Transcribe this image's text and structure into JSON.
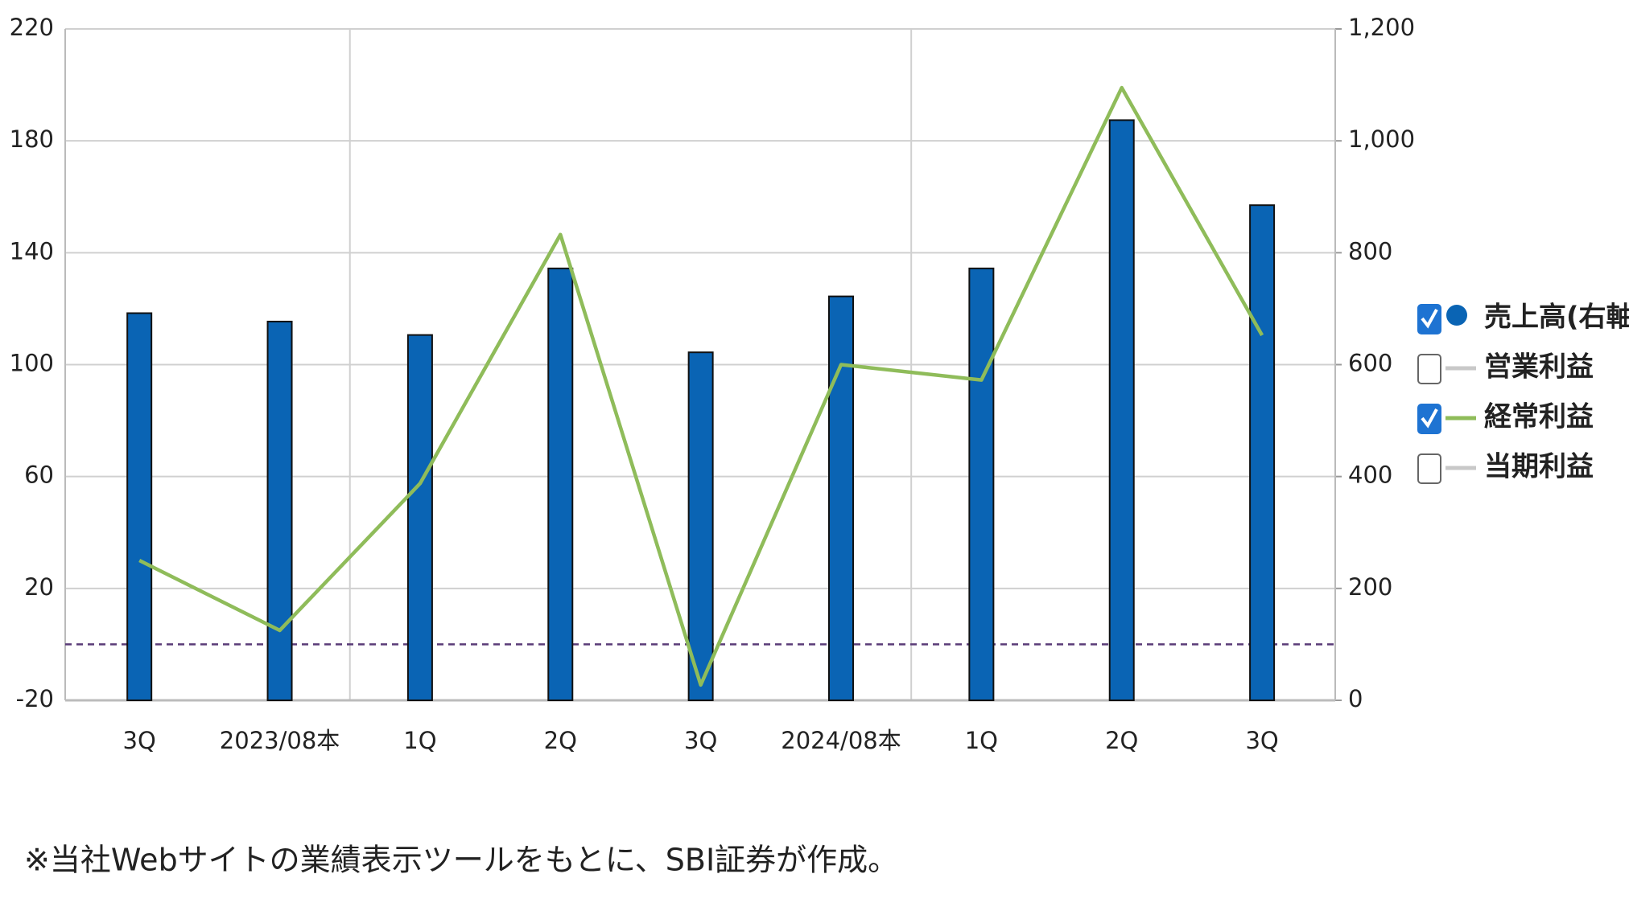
{
  "chart_data": {
    "type": "bar-line",
    "categories": [
      "3Q",
      "2023/08本",
      "1Q",
      "2Q",
      "3Q",
      "2024/08本",
      "1Q",
      "2Q",
      "3Q"
    ],
    "series": [
      {
        "name": "売上高(右軸)",
        "type": "bar",
        "axis": "y2",
        "color": "#0a64b4",
        "checked": true,
        "values": [
          692,
          677,
          653,
          772,
          622,
          722,
          772,
          1037,
          885
        ]
      },
      {
        "name": "営業利益",
        "type": "line",
        "color": "#c8c8c8",
        "checked": false
      },
      {
        "name": "経常利益",
        "type": "line",
        "color": "#8fbc5a",
        "checked": true,
        "values": [
          30,
          5,
          57.5,
          146.5,
          -14.5,
          100,
          94.5,
          199,
          110.5
        ]
      },
      {
        "name": "当期利益",
        "type": "line",
        "color": "#c8c8c8",
        "checked": false
      }
    ],
    "ylim": [
      -20,
      220
    ],
    "yticks": [
      -20,
      20,
      60,
      100,
      140,
      180,
      220
    ],
    "y2lim": [
      0,
      1200
    ],
    "y2ticks": [
      0,
      200,
      400,
      600,
      800,
      {
        "value": 1000,
        "label": "1,000"
      },
      {
        "value": 1200,
        "label": "1,200"
      }
    ],
    "reference_line": 0,
    "grid": true,
    "legend": "right",
    "note": "※当社Webサイトの業績表示ツールをもとに、SBI証券が作成。"
  }
}
